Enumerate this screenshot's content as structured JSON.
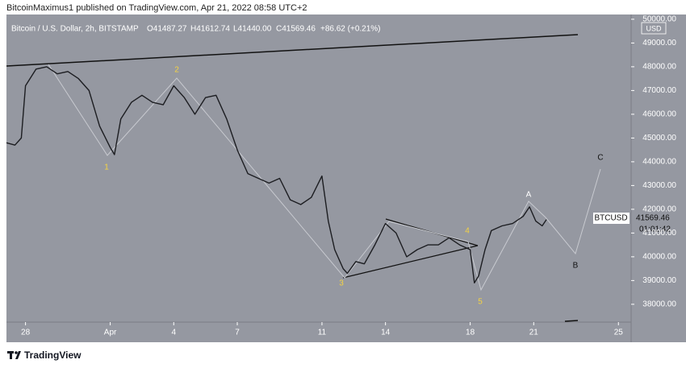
{
  "header": {
    "publisher": "BitcoinMaximus1 published on TradingView.com, Apr 21, 2022 08:58 UTC+2"
  },
  "footer": {
    "brand": "TradingView"
  },
  "chart_data": {
    "type": "line",
    "symbol": "Bitcoin / U.S. Dollar, 2h, BITSTAMP",
    "ohlc": [
      "O41487.27",
      "H41612.74",
      "L41440.00",
      "C41569.46",
      "+86.62 (+0.21%)"
    ],
    "currency": "USD",
    "price_label": {
      "ticker": "BTCUSD",
      "price": "41569.46",
      "countdown": "01:01:42"
    },
    "color": "#1c1d21",
    "grid": false,
    "x": [
      -0.9,
      -0.5,
      -0.2,
      0,
      0.5,
      1,
      1.5,
      2,
      2.5,
      3,
      3.5,
      4,
      4.2,
      4.5,
      5,
      5.5,
      6,
      6.5,
      7,
      7.5,
      8,
      8.5,
      9,
      9.5,
      10,
      10.5,
      11,
      11.5,
      12,
      12.5,
      13,
      13.5,
      14,
      14.3,
      14.6,
      15,
      15.2,
      15.6,
      16,
      16.5,
      17,
      17.5,
      18,
      18.5,
      19,
      19.5,
      20,
      20.5,
      21,
      21.2,
      21.4,
      21.7,
      22,
      22.5,
      23,
      23.5,
      23.8,
      24.1,
      24.4,
      24.6
    ],
    "values": [
      44800,
      44700,
      45000,
      47200,
      47900,
      48000,
      47700,
      47800,
      47500,
      47000,
      45500,
      44600,
      44300,
      45800,
      46500,
      46800,
      46500,
      46400,
      47200,
      46700,
      46000,
      46700,
      46800,
      45800,
      44500,
      43500,
      43300,
      43100,
      43300,
      42400,
      42200,
      42500,
      43400,
      41500,
      40300,
      39500,
      39300,
      39800,
      39700,
      40500,
      41400,
      41000,
      40000,
      40300,
      40500,
      40500,
      40800,
      40500,
      40300,
      38900,
      39200,
      40300,
      41100,
      41300,
      41400,
      41700,
      42100,
      41500,
      41300,
      41569.46
    ],
    "xlim": [
      -0.9,
      28.6
    ],
    "xticks": [
      {
        "value": 0,
        "label": "28"
      },
      {
        "value": 4,
        "label": "Apr"
      },
      {
        "value": 7,
        "label": "4"
      },
      {
        "value": 10,
        "label": "7"
      },
      {
        "value": 14,
        "label": "11"
      },
      {
        "value": 17,
        "label": "14"
      },
      {
        "value": 21,
        "label": "18"
      },
      {
        "value": 24,
        "label": "21"
      },
      {
        "value": 28,
        "label": "25"
      }
    ],
    "ylim": [
      37250,
      50200
    ],
    "yticks": [
      {
        "value": 38000,
        "label": "38000.00"
      },
      {
        "value": 39000,
        "label": "39000.00"
      },
      {
        "value": 40000,
        "label": "40000.00"
      },
      {
        "value": 41000,
        "label": "41000.00"
      },
      {
        "value": 42000,
        "label": "42000.00"
      },
      {
        "value": 43000,
        "label": "43000.00"
      },
      {
        "value": 44000,
        "label": "44000.00"
      },
      {
        "value": 45000,
        "label": "45000.00"
      },
      {
        "value": 46000,
        "label": "46000.00"
      },
      {
        "value": 47000,
        "label": "47000.00"
      },
      {
        "value": 48000,
        "label": "48000.00"
      },
      {
        "value": 49000,
        "label": "49000.00"
      },
      {
        "value": 50000,
        "label": "50000.00"
      }
    ],
    "annotations": [
      "1",
      "2",
      "3",
      "4",
      "5",
      "A",
      "B",
      "C"
    ]
  }
}
